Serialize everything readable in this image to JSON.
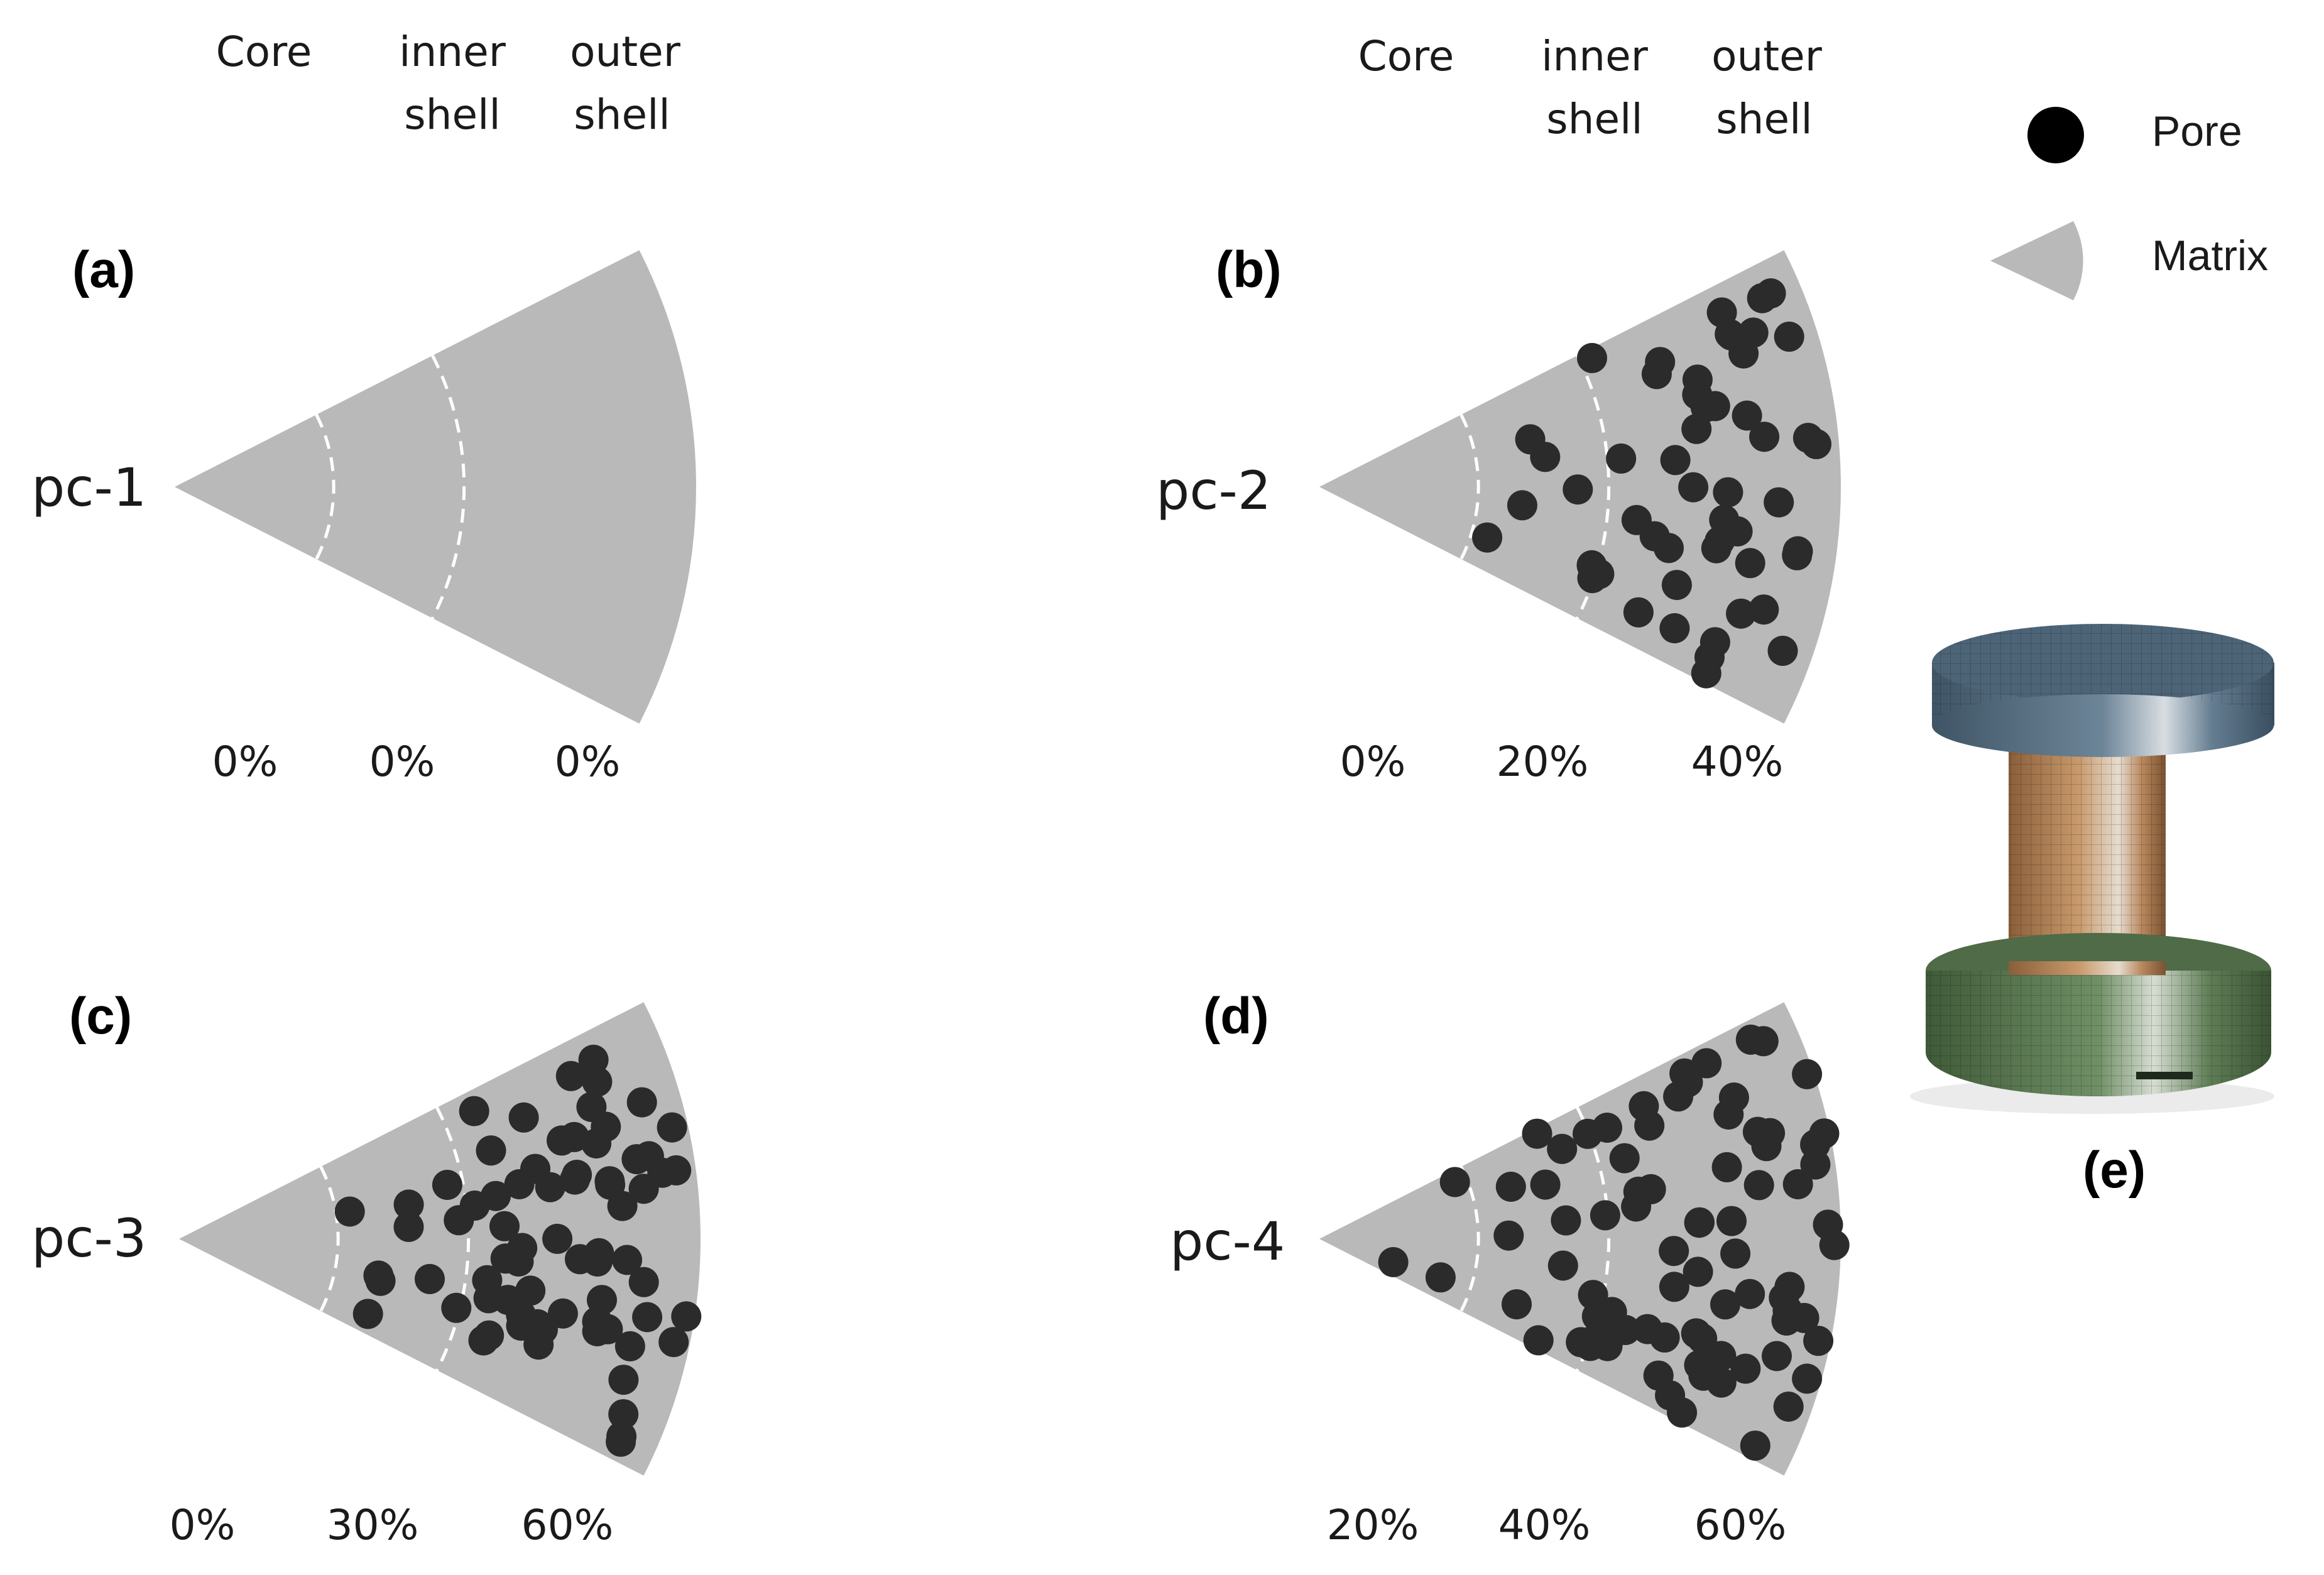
{
  "figure": {
    "zone_headers": [
      "Core",
      "inner",
      "shell",
      "outer",
      "shell"
    ],
    "panels": [
      {
        "id": "a",
        "label": "(a)",
        "sample": "pc-1",
        "porosity": [
          "0%",
          "0%",
          "0%"
        ]
      },
      {
        "id": "b",
        "label": "(b)",
        "sample": "pc-2",
        "porosity": [
          "0%",
          "20%",
          "40%"
        ]
      },
      {
        "id": "c",
        "label": "(c)",
        "sample": "pc-3",
        "porosity": [
          "0%",
          "30%",
          "60%"
        ]
      },
      {
        "id": "d",
        "label": "(d)",
        "sample": "pc-4",
        "porosity": [
          "20%",
          "40%",
          "60%"
        ]
      }
    ],
    "model_label": "(e)",
    "legend": {
      "pore": "Pore",
      "matrix": "Matrix"
    },
    "colors": {
      "matrix": "#b9b9b9",
      "pore": "#2b2b2b",
      "boundary": "#ffffff",
      "top_ring": "#5b7286",
      "bottom_ring": "#5d7a55",
      "cylinder": "#b8875c"
    }
  }
}
